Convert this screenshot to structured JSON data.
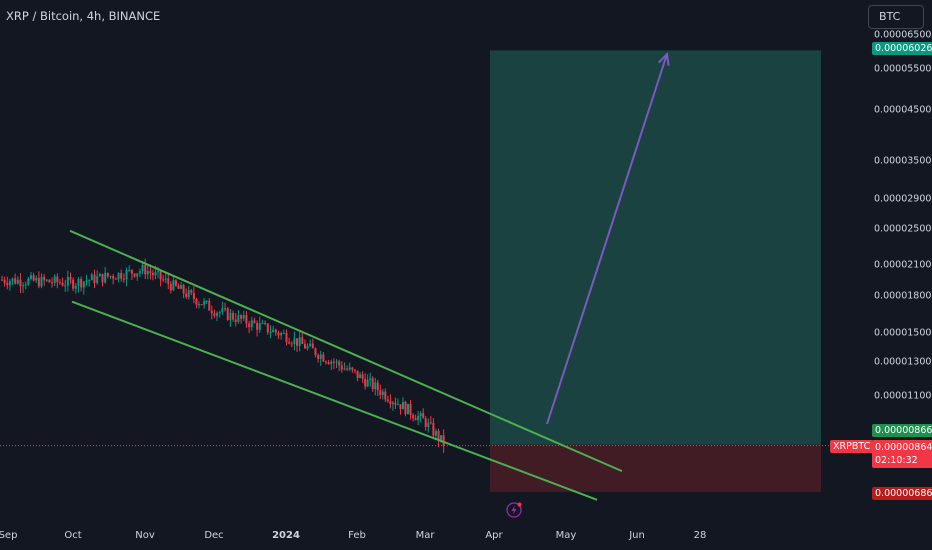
{
  "header": {
    "title": "XRP / Bitcoin, 4h, BINANCE",
    "currency": "BTC"
  },
  "price_axis": {
    "labels": [
      "0.00006500",
      "0.00005500",
      "0.00004500",
      "0.00003500",
      "0.00002900",
      "0.00002500",
      "0.00002100",
      "0.00001800",
      "0.00001500",
      "0.00001300",
      "0.00001100"
    ]
  },
  "price_tags": {
    "target": "0.00006026",
    "entry": "0.00000866",
    "current": "0.00000864",
    "countdown": "02:10:32",
    "stop": "0.00000686",
    "symbol": "XRPBTC"
  },
  "colors": {
    "background": "#131722",
    "up": "#089981",
    "down": "#f23645",
    "channel": "#4caf50",
    "arrow": "#7e57c2",
    "profit_zone": "#1b4a45",
    "loss_zone": "#4a1d24"
  },
  "icons": {
    "flash": "lightning-icon"
  },
  "chart_data": {
    "type": "line",
    "title": "XRP / Bitcoin, 4h, BINANCE",
    "x_axis": {
      "tick_labels": [
        "Sep",
        "Oct",
        "Nov",
        "Dec",
        "2024",
        "Feb",
        "Mar",
        "Apr",
        "May",
        "Jun",
        "28"
      ]
    },
    "y_axis": {
      "scale": "log",
      "unit": "BTC"
    },
    "series": [
      {
        "x": [
          "Sep",
          "Oct",
          "Nov",
          "Dec",
          "2024",
          "Feb",
          "Mar",
          "Apr"
        ],
        "values": [
          1.96e-05,
          1.92e-05,
          2.05e-05,
          1.68e-05,
          1.48e-05,
          1.22e-05,
          9.7e-06,
          8.7e-06
        ]
      }
    ],
    "trend_channel": {
      "upper": [
        2.48e-05,
        7.6e-06
      ],
      "lower": [
        1.75e-05,
        6.6e-06
      ]
    },
    "long_position": {
      "entry": 8.66e-06,
      "target": 6.026e-05,
      "stop": 6.86e-06
    },
    "grid": false,
    "legend": "none"
  }
}
